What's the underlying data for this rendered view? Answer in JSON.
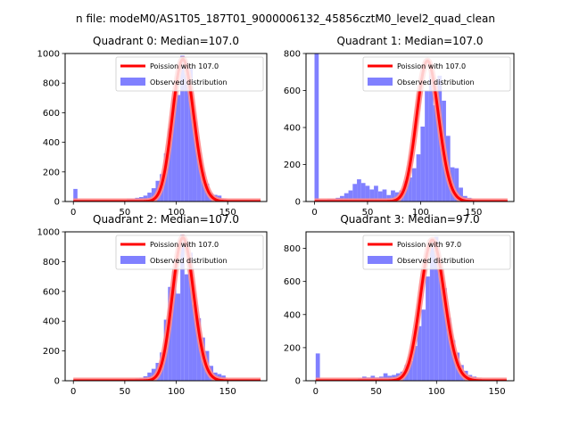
{
  "figure": {
    "suptitle": "n file: modeM0/AS1T05_187T01_9000006132_45856cztM0_level2_quad_clean",
    "colors": {
      "hist": "#8080ff",
      "poisson": "#ff0000",
      "poisson_light": "#ff8a8a"
    }
  },
  "chart_data": [
    {
      "type": "bar",
      "title": "Quadrant 0: Median=107.0",
      "xlim": [
        -8,
        188
      ],
      "ylim": [
        0,
        1000
      ],
      "xticks": [
        0,
        50,
        100,
        150
      ],
      "yticks": [
        0,
        200,
        400,
        600,
        800,
        1000
      ],
      "legend": {
        "placement": "upper-right",
        "entries": [
          "Poission with 107.0",
          "Observed distribution"
        ]
      },
      "poisson_lambda": 107.0,
      "poisson_scale": 960,
      "bin_width": 4,
      "histogram": {
        "bins": [
          0,
          4,
          52,
          56,
          60,
          64,
          68,
          72,
          76,
          80,
          84,
          88,
          92,
          96,
          100,
          104,
          108,
          112,
          116,
          120,
          124,
          128,
          132,
          136,
          140,
          144,
          148,
          152
        ],
        "counts": [
          85,
          5,
          20,
          20,
          25,
          30,
          40,
          60,
          90,
          140,
          185,
          325,
          495,
          695,
          720,
          985,
          865,
          900,
          540,
          330,
          200,
          120,
          55,
          45,
          40,
          20,
          10,
          5
        ]
      }
    },
    {
      "type": "bar",
      "title": "Quadrant 1: Median=107.0",
      "xlim": [
        -8,
        188
      ],
      "ylim": [
        0,
        800
      ],
      "xticks": [
        0,
        50,
        100,
        150
      ],
      "yticks": [
        0,
        200,
        400,
        600,
        800
      ],
      "legend": {
        "placement": "upper-right",
        "entries": [
          "Poission with 107.0",
          "Observed distribution"
        ]
      },
      "poisson_lambda": 107.0,
      "poisson_scale": 760,
      "bin_width": 4,
      "histogram": {
        "bins": [
          0,
          4,
          8,
          12,
          16,
          20,
          24,
          28,
          32,
          36,
          40,
          44,
          48,
          52,
          56,
          60,
          64,
          68,
          72,
          76,
          80,
          84,
          88,
          92,
          96,
          100,
          104,
          108,
          112,
          116,
          120,
          124,
          128,
          132,
          136,
          140,
          144,
          148,
          152
        ],
        "counts": [
          800,
          10,
          10,
          15,
          15,
          20,
          30,
          45,
          60,
          95,
          120,
          100,
          85,
          65,
          85,
          55,
          65,
          35,
          60,
          50,
          60,
          110,
          130,
          180,
          255,
          405,
          600,
          700,
          520,
          680,
          545,
          355,
          185,
          180,
          75,
          30,
          20,
          10,
          5
        ]
      }
    },
    {
      "type": "bar",
      "title": "Quadrant 2: Median=107.0",
      "xlim": [
        -8,
        188
      ],
      "ylim": [
        0,
        1000
      ],
      "xticks": [
        0,
        50,
        100,
        150
      ],
      "yticks": [
        0,
        200,
        400,
        600,
        800,
        1000
      ],
      "legend": {
        "placement": "upper-right",
        "entries": [
          "Poission with 107.0",
          "Observed distribution"
        ]
      },
      "poisson_lambda": 107.0,
      "poisson_scale": 960,
      "bin_width": 4,
      "histogram": {
        "bins": [
          52,
          56,
          60,
          64,
          68,
          72,
          76,
          80,
          84,
          88,
          92,
          96,
          100,
          104,
          108,
          112,
          116,
          120,
          124,
          128,
          132,
          136,
          140,
          144,
          148,
          152
        ],
        "counts": [
          10,
          10,
          15,
          20,
          30,
          55,
          80,
          120,
          190,
          410,
          630,
          735,
          585,
          980,
          715,
          860,
          510,
          420,
          290,
          200,
          100,
          55,
          45,
          35,
          10,
          5
        ]
      }
    },
    {
      "type": "bar",
      "title": "Quadrant 3: Median=97.0",
      "xlim": [
        -8,
        164
      ],
      "ylim": [
        0,
        900
      ],
      "xticks": [
        0,
        50,
        100,
        150
      ],
      "yticks": [
        0,
        200,
        400,
        600,
        800
      ],
      "legend": {
        "placement": "upper-right",
        "entries": [
          "Poission with 97.0",
          "Observed distribution"
        ]
      },
      "poisson_lambda": 97.0,
      "poisson_scale": 850,
      "bin_width": 3.5,
      "histogram": {
        "bins": [
          0,
          3.5,
          35,
          38.5,
          42,
          45.5,
          49,
          52.5,
          56,
          59.5,
          63,
          66.5,
          70,
          73.5,
          77,
          80.5,
          84,
          87.5,
          91,
          94.5,
          98,
          101.5,
          105,
          108.5,
          112,
          115.5,
          119,
          122.5,
          126,
          129.5,
          133,
          136.5,
          140
        ],
        "counts": [
          165,
          5,
          15,
          25,
          20,
          30,
          20,
          25,
          45,
          30,
          35,
          45,
          55,
          95,
          120,
          210,
          330,
          430,
          630,
          845,
          870,
          690,
          560,
          380,
          245,
          170,
          95,
          60,
          35,
          25,
          15,
          10,
          5
        ]
      }
    }
  ]
}
